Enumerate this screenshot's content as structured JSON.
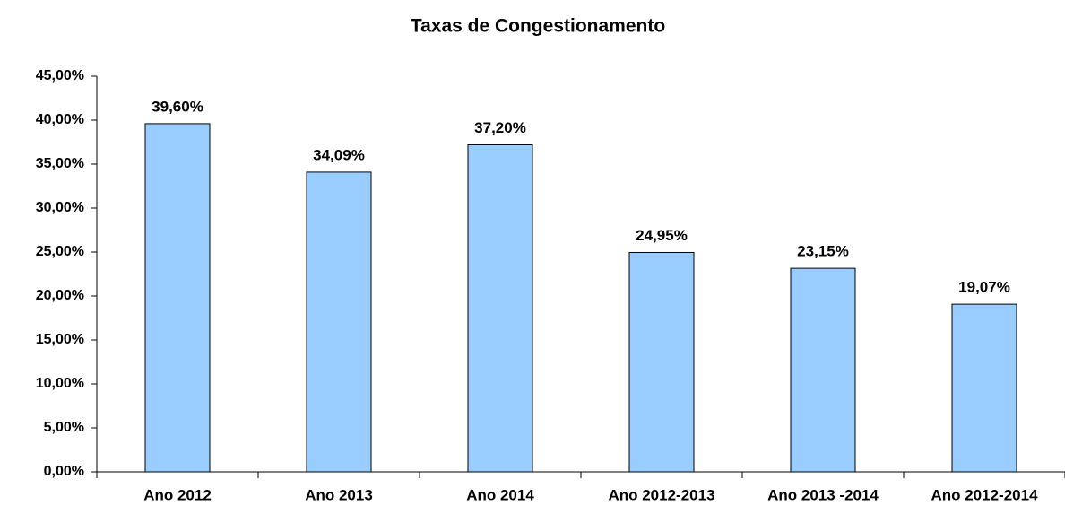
{
  "chart_data": {
    "type": "bar",
    "title": "Taxas de Congestionamento",
    "categories": [
      "Ano 2012",
      "Ano 2013",
      "Ano 2014",
      "Ano 2012-2013",
      "Ano 2013 -2014",
      "Ano 2012-2014"
    ],
    "values": [
      39.6,
      34.09,
      37.2,
      24.95,
      23.15,
      19.07
    ],
    "value_labels": [
      "39,60%",
      "34,09%",
      "37,20%",
      "24,95%",
      "23,15%",
      "19,07%"
    ],
    "color": "#99ccff",
    "ylim": [
      0,
      45
    ],
    "yticks": [
      {
        "value": 0,
        "label": "0,00%"
      },
      {
        "value": 5,
        "label": "5,00%"
      },
      {
        "value": 10,
        "label": "10,00%"
      },
      {
        "value": 15,
        "label": "15,00%"
      },
      {
        "value": 20,
        "label": "20,00%"
      },
      {
        "value": 25,
        "label": "25,00%"
      },
      {
        "value": 30,
        "label": "30,00%"
      },
      {
        "value": 35,
        "label": "35,00%"
      },
      {
        "value": 40,
        "label": "40,00%"
      },
      {
        "value": 45,
        "label": "45,00%"
      }
    ]
  }
}
